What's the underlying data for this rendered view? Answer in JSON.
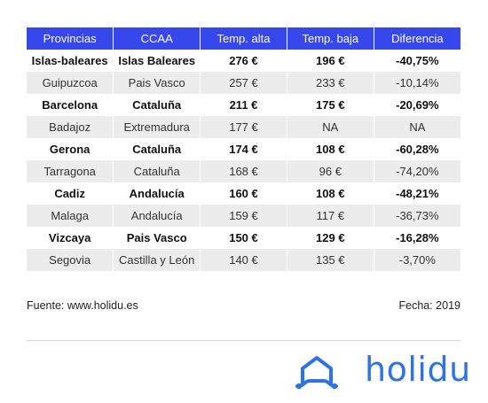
{
  "chart_data": {
    "type": "table",
    "columns": [
      "Provincias",
      "CCAA",
      "Temp. alta",
      "Temp. baja",
      "Diferencia"
    ],
    "rows": [
      [
        "Islas-baleares",
        "Islas Baleares",
        "276 €",
        "196 €",
        "-40,75%"
      ],
      [
        "Guipuzcoa",
        "Pais Vasco",
        "257 €",
        "233 €",
        "-10,14%"
      ],
      [
        "Barcelona",
        "Cataluña",
        "211 €",
        "175 €",
        "-20,69%"
      ],
      [
        "Badajoz",
        "Extremadura",
        "177 €",
        "NA",
        "NA"
      ],
      [
        "Gerona",
        "Cataluña",
        "174 €",
        "108 €",
        "-60,28%"
      ],
      [
        "Tarragona",
        "Cataluña",
        "168 €",
        "96 €",
        "-74,20%"
      ],
      [
        "Cadiz",
        "Andalucía",
        "160 €",
        "108 €",
        "-48,21%"
      ],
      [
        "Malaga",
        "Andalucía",
        "159 €",
        "117 €",
        "-36,73%"
      ],
      [
        "Vizcaya",
        "Pais Vasco",
        "150 €",
        "129 €",
        "-16,28%"
      ],
      [
        "Segovia",
        "Castilla y León",
        "140 €",
        "135 €",
        "-3,70%"
      ]
    ]
  },
  "footer": {
    "source": "Fuente: www.holidu.es",
    "date": "Fecha: 2019"
  },
  "brand": {
    "name": "holidu",
    "color": "#2d73e6",
    "header_color": "#3647ec"
  }
}
